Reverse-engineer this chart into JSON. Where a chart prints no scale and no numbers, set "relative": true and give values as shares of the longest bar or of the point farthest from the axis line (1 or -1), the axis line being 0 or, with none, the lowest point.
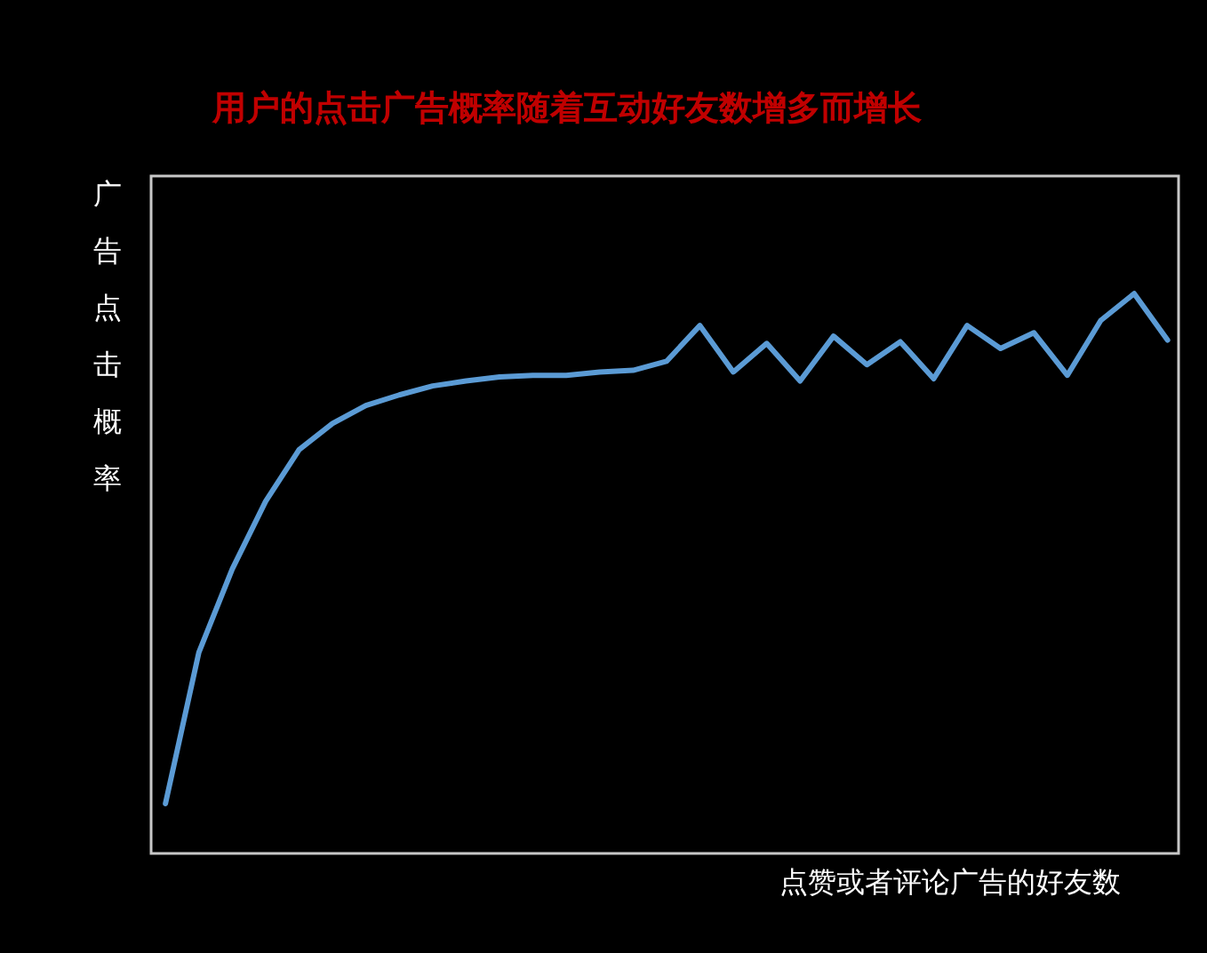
{
  "chart_data": {
    "type": "line",
    "title": "用户的点击广告概率随着互动好友数增多而增长",
    "xlabel": "点赞或者评论广告的好友数",
    "ylabel": "广告点击概率",
    "relative": true,
    "categories": [
      null,
      null,
      null,
      null,
      null,
      null,
      null,
      null,
      null,
      null,
      null,
      null,
      null,
      null,
      null,
      null,
      null,
      null,
      null,
      null,
      null,
      null,
      null,
      null,
      null,
      null,
      null,
      null,
      null,
      null,
      null
    ],
    "series": [
      {
        "color": "#5b9bd5",
        "values": [
          0.089,
          0.359,
          0.508,
          0.629,
          0.721,
          0.768,
          0.8,
          0.819,
          0.835,
          0.844,
          0.851,
          0.854,
          0.854,
          0.86,
          0.863,
          0.879,
          0.943,
          0.86,
          0.911,
          0.844,
          0.924,
          0.873,
          0.914,
          0.848,
          0.943,
          0.902,
          0.93,
          0.854,
          0.952,
          1,
          0.917
        ]
      }
    ],
    "grid": false,
    "marker": "none",
    "line_style": "solid"
  }
}
